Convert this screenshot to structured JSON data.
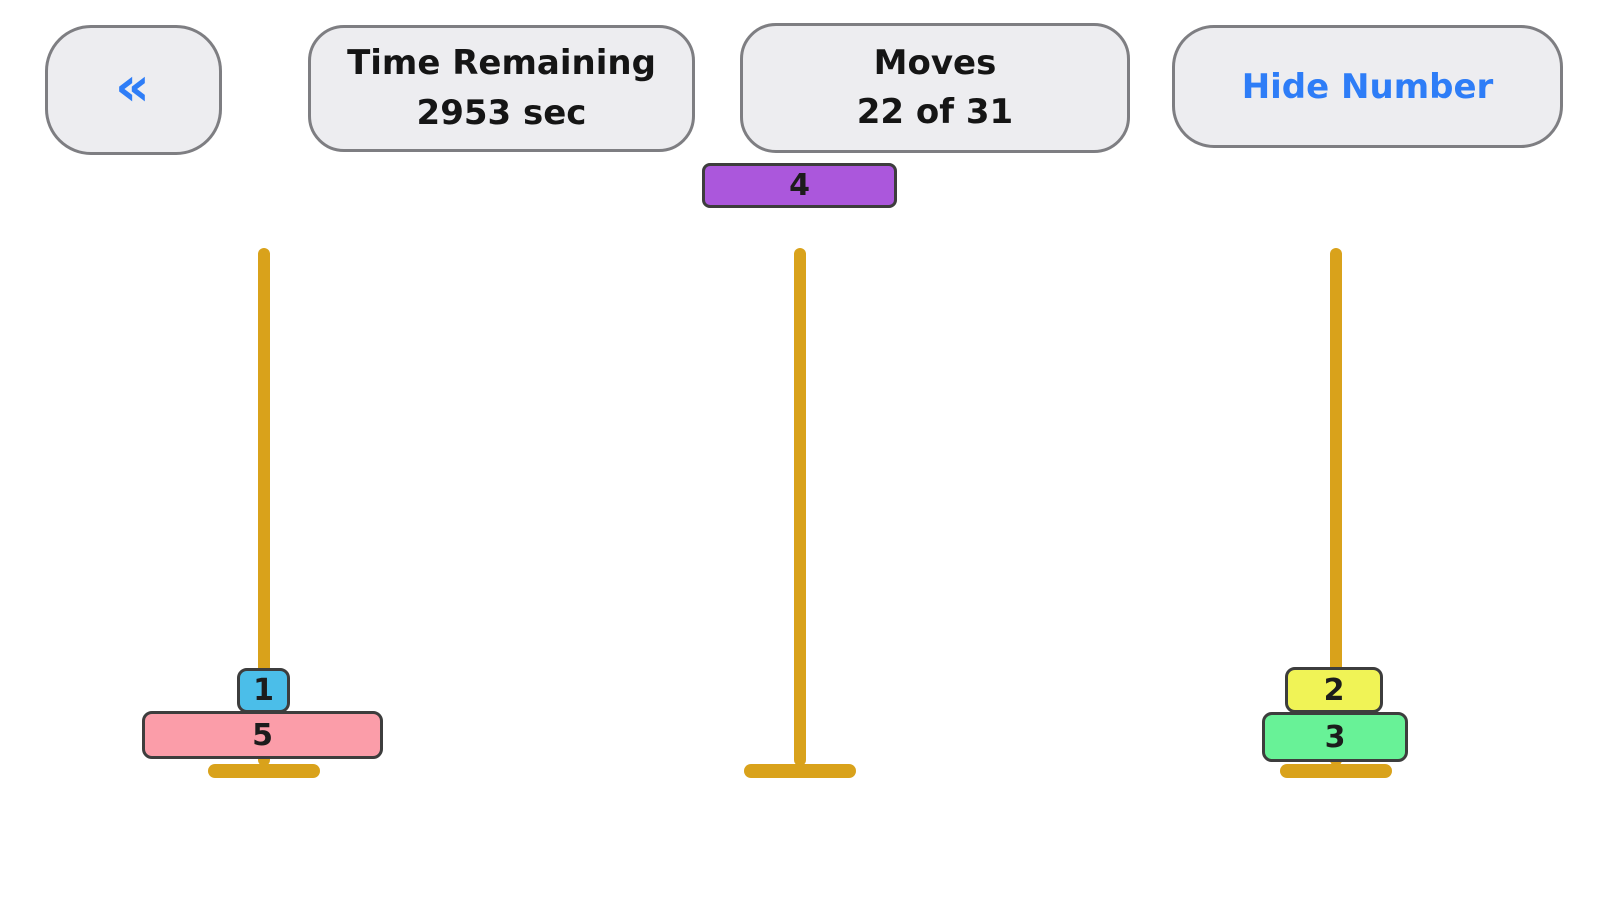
{
  "header": {
    "back_label": "«",
    "time_remaining": {
      "title": "Time Remaining",
      "value": "2953 sec"
    },
    "moves": {
      "title": "Moves",
      "value": "22 of 31"
    },
    "hide_number_label": "Hide Number"
  },
  "game": {
    "held_disk": {
      "number": "4",
      "color": "#AB57DC",
      "position": "hovering-above-middle-peg"
    },
    "pegs": [
      {
        "name": "left",
        "disks_top_to_bottom": [
          "1",
          "5"
        ]
      },
      {
        "name": "middle",
        "disks_top_to_bottom": []
      },
      {
        "name": "right",
        "disks_top_to_bottom": [
          "2",
          "3"
        ]
      }
    ],
    "disks": {
      "d1": {
        "number": "1",
        "color": "#4BBEE9"
      },
      "d2": {
        "number": "2",
        "color": "#F0F356"
      },
      "d3": {
        "number": "3",
        "color": "#68F297"
      },
      "d4": {
        "number": "4",
        "color": "#AB57DC"
      },
      "d5": {
        "number": "5",
        "color": "#FB9DA9"
      }
    }
  },
  "colors": {
    "rod": "#D9A21B",
    "base": "#D9A21B",
    "disk_border": "#3D3D3D",
    "button_bg": "#EDEDF0",
    "button_border": "#7E7E82",
    "accent_blue": "#2E7DF7",
    "text_dark": "#151515"
  }
}
